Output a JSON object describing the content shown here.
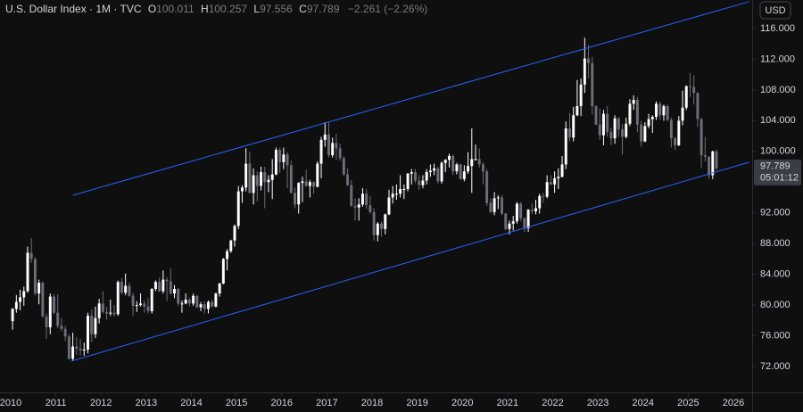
{
  "header": {
    "title": "U.S. Dollar Index · 1M · TVC",
    "o_label": "O",
    "open": "100.011",
    "h_label": "H",
    "high": "100.257",
    "l_label": "L",
    "low": "97.556",
    "c_label": "C",
    "close": "97.789",
    "change": "−2.261 (−2.26%)"
  },
  "currency": "USD",
  "chart_data": {
    "type": "candlestick",
    "xlim": [
      2009.763,
      2026.415
    ],
    "xticks": [
      2010,
      2011,
      2012,
      2013,
      2014,
      2015,
      2016,
      2017,
      2018,
      2019,
      2020,
      2021,
      2022,
      2023,
      2024,
      2025,
      2026
    ],
    "ylim": [
      68.63,
      119.71
    ],
    "yticks": [
      {
        "value": 72,
        "label": "72.000"
      },
      {
        "value": 76,
        "label": "76.000"
      },
      {
        "value": 80,
        "label": "80.000"
      },
      {
        "value": 84,
        "label": "84.000"
      },
      {
        "value": 88,
        "label": "88.000"
      },
      {
        "value": 92,
        "label": "92.000"
      },
      {
        "value": 96,
        "label": "96.000"
      },
      {
        "value": 100,
        "label": "100.000"
      },
      {
        "value": 104,
        "label": "104.000"
      },
      {
        "value": 108,
        "label": "108.000"
      },
      {
        "value": 112,
        "label": "112.000"
      },
      {
        "value": 116,
        "label": "116.000"
      }
    ],
    "up_color": "#ffffff",
    "down_color": "#6b6e78",
    "line_color": "#2962ff",
    "last_price": {
      "value": 97.789,
      "label": "97.789",
      "countdown": "05:01:12"
    },
    "trend_lines": [
      {
        "x": [
          2011.38,
          2026.35
        ],
        "y": [
          94.3,
          119.5
        ]
      },
      {
        "x": [
          2011.34,
          2026.35
        ],
        "y": [
          72.7,
          98.6
        ]
      }
    ],
    "x": [
      "2010-01",
      "2010-02",
      "2010-03",
      "2010-04",
      "2010-05",
      "2010-06",
      "2010-07",
      "2010-08",
      "2010-09",
      "2010-10",
      "2010-11",
      "2010-12",
      "2011-01",
      "2011-02",
      "2011-03",
      "2011-04",
      "2011-05",
      "2011-06",
      "2011-07",
      "2011-08",
      "2011-09",
      "2011-10",
      "2011-11",
      "2011-12",
      "2012-01",
      "2012-02",
      "2012-03",
      "2012-04",
      "2012-05",
      "2012-06",
      "2012-07",
      "2012-08",
      "2012-09",
      "2012-10",
      "2012-11",
      "2012-12",
      "2013-01",
      "2013-02",
      "2013-03",
      "2013-04",
      "2013-05",
      "2013-06",
      "2013-07",
      "2013-08",
      "2013-09",
      "2013-10",
      "2013-11",
      "2013-12",
      "2014-01",
      "2014-02",
      "2014-03",
      "2014-04",
      "2014-05",
      "2014-06",
      "2014-07",
      "2014-08",
      "2014-09",
      "2014-10",
      "2014-11",
      "2014-12",
      "2015-01",
      "2015-02",
      "2015-03",
      "2015-04",
      "2015-05",
      "2015-06",
      "2015-07",
      "2015-08",
      "2015-09",
      "2015-10",
      "2015-11",
      "2015-12",
      "2016-01",
      "2016-02",
      "2016-03",
      "2016-04",
      "2016-05",
      "2016-06",
      "2016-07",
      "2016-08",
      "2016-09",
      "2016-10",
      "2016-11",
      "2016-12",
      "2017-01",
      "2017-02",
      "2017-03",
      "2017-04",
      "2017-05",
      "2017-06",
      "2017-07",
      "2017-08",
      "2017-09",
      "2017-10",
      "2017-11",
      "2017-12",
      "2018-01",
      "2018-02",
      "2018-03",
      "2018-04",
      "2018-05",
      "2018-06",
      "2018-07",
      "2018-08",
      "2018-09",
      "2018-10",
      "2018-11",
      "2018-12",
      "2019-01",
      "2019-02",
      "2019-03",
      "2019-04",
      "2019-05",
      "2019-06",
      "2019-07",
      "2019-08",
      "2019-09",
      "2019-10",
      "2019-11",
      "2019-12",
      "2020-01",
      "2020-02",
      "2020-03",
      "2020-04",
      "2020-05",
      "2020-06",
      "2020-07",
      "2020-08",
      "2020-09",
      "2020-10",
      "2020-11",
      "2020-12",
      "2021-01",
      "2021-02",
      "2021-03",
      "2021-04",
      "2021-05",
      "2021-06",
      "2021-07",
      "2021-08",
      "2021-09",
      "2021-10",
      "2021-11",
      "2021-12",
      "2022-01",
      "2022-02",
      "2022-03",
      "2022-04",
      "2022-05",
      "2022-06",
      "2022-07",
      "2022-08",
      "2022-09",
      "2022-10",
      "2022-11",
      "2022-12",
      "2023-01",
      "2023-02",
      "2023-03",
      "2023-04",
      "2023-05",
      "2023-06",
      "2023-07",
      "2023-08",
      "2023-09",
      "2023-10",
      "2023-11",
      "2023-12",
      "2024-01",
      "2024-02",
      "2024-03",
      "2024-04",
      "2024-05",
      "2024-06",
      "2024-07",
      "2024-08",
      "2024-09",
      "2024-10",
      "2024-11",
      "2024-12",
      "2025-01",
      "2025-02",
      "2025-03",
      "2025-04",
      "2025-05",
      "2025-06",
      "2025-07",
      "2025-08"
    ],
    "candles": [
      [
        77.9,
        79.6,
        76.8,
        79.5
      ],
      [
        79.5,
        81.3,
        79.0,
        80.4
      ],
      [
        80.4,
        82.0,
        79.3,
        81.0
      ],
      [
        81.0,
        82.4,
        79.9,
        81.8
      ],
      [
        81.8,
        87.6,
        81.6,
        86.8
      ],
      [
        86.8,
        88.7,
        85.5,
        86.0
      ],
      [
        86.0,
        86.2,
        81.3,
        81.5
      ],
      [
        81.5,
        83.3,
        80.1,
        82.9
      ],
      [
        82.9,
        83.1,
        78.4,
        78.5
      ],
      [
        78.5,
        78.9,
        75.6,
        77.1
      ],
      [
        77.1,
        81.5,
        76.2,
        81.1
      ],
      [
        81.1,
        81.4,
        78.8,
        79.0
      ],
      [
        79.0,
        81.4,
        77.0,
        77.3
      ],
      [
        77.3,
        78.3,
        76.6,
        76.9
      ],
      [
        76.9,
        77.3,
        75.3,
        75.9
      ],
      [
        75.9,
        76.2,
        72.9,
        73.0
      ],
      [
        73.0,
        76.4,
        72.7,
        74.6
      ],
      [
        74.6,
        75.8,
        73.5,
        74.3
      ],
      [
        74.3,
        75.6,
        73.4,
        74.1
      ],
      [
        74.1,
        75.1,
        73.4,
        74.2
      ],
      [
        74.2,
        79.0,
        73.7,
        78.6
      ],
      [
        78.6,
        79.4,
        75.2,
        76.2
      ],
      [
        76.2,
        79.8,
        75.7,
        78.3
      ],
      [
        78.3,
        80.8,
        77.6,
        80.2
      ],
      [
        80.2,
        81.8,
        78.9,
        79.1
      ],
      [
        79.1,
        79.8,
        78.1,
        78.9
      ],
      [
        78.9,
        80.7,
        78.6,
        79.0
      ],
      [
        79.0,
        80.0,
        78.5,
        78.8
      ],
      [
        78.8,
        83.2,
        78.6,
        83.0
      ],
      [
        83.0,
        83.5,
        81.4,
        81.6
      ],
      [
        81.6,
        84.1,
        81.3,
        82.5
      ],
      [
        82.5,
        82.9,
        81.1,
        81.2
      ],
      [
        81.2,
        81.6,
        78.6,
        79.9
      ],
      [
        79.9,
        80.5,
        79.1,
        80.0
      ],
      [
        80.0,
        81.5,
        79.8,
        80.2
      ],
      [
        80.2,
        80.6,
        79.0,
        79.8
      ],
      [
        79.8,
        80.9,
        78.9,
        79.2
      ],
      [
        79.2,
        82.2,
        78.9,
        82.1
      ],
      [
        82.1,
        83.2,
        81.8,
        83.0
      ],
      [
        83.0,
        83.6,
        81.7,
        81.8
      ],
      [
        81.8,
        84.5,
        81.5,
        83.3
      ],
      [
        83.3,
        83.6,
        80.5,
        83.1
      ],
      [
        83.1,
        84.8,
        81.4,
        81.5
      ],
      [
        81.5,
        82.6,
        80.9,
        82.1
      ],
      [
        82.1,
        82.2,
        79.9,
        80.2
      ],
      [
        80.2,
        80.6,
        79.0,
        80.2
      ],
      [
        80.2,
        81.5,
        80.1,
        80.7
      ],
      [
        80.7,
        81.0,
        79.8,
        80.2
      ],
      [
        80.2,
        81.5,
        79.9,
        81.2
      ],
      [
        81.2,
        81.3,
        79.6,
        79.7
      ],
      [
        79.7,
        80.4,
        79.2,
        80.1
      ],
      [
        80.1,
        80.5,
        78.9,
        79.5
      ],
      [
        79.5,
        80.6,
        78.9,
        80.4
      ],
      [
        80.4,
        80.7,
        79.7,
        79.8
      ],
      [
        79.8,
        81.6,
        79.7,
        81.5
      ],
      [
        81.5,
        82.9,
        81.1,
        82.8
      ],
      [
        82.8,
        86.1,
        82.7,
        86.0
      ],
      [
        86.0,
        87.3,
        84.5,
        87.0
      ],
      [
        87.0,
        88.5,
        86.8,
        88.4
      ],
      [
        88.4,
        90.5,
        87.6,
        90.3
      ],
      [
        90.3,
        95.5,
        89.9,
        94.8
      ],
      [
        94.8,
        95.6,
        93.3,
        95.3
      ],
      [
        95.3,
        100.4,
        94.8,
        98.4
      ],
      [
        98.4,
        100.0,
        94.5,
        94.6
      ],
      [
        94.6,
        97.8,
        93.1,
        96.9
      ],
      [
        96.9,
        97.4,
        93.5,
        95.5
      ],
      [
        95.5,
        98.0,
        94.9,
        97.3
      ],
      [
        97.3,
        98.0,
        92.6,
        96.0
      ],
      [
        96.0,
        96.9,
        94.7,
        96.3
      ],
      [
        96.3,
        99.0,
        93.8,
        97.0
      ],
      [
        97.0,
        100.5,
        96.9,
        100.2
      ],
      [
        100.2,
        100.5,
        97.2,
        98.6
      ],
      [
        98.6,
        100.5,
        97.7,
        99.6
      ],
      [
        99.6,
        99.9,
        95.2,
        98.2
      ],
      [
        98.2,
        98.8,
        94.5,
        94.6
      ],
      [
        94.6,
        95.3,
        92.6,
        93.1
      ],
      [
        93.1,
        96.0,
        91.9,
        95.9
      ],
      [
        95.9,
        96.7,
        93.4,
        96.1
      ],
      [
        96.1,
        97.6,
        95.4,
        95.5
      ],
      [
        95.5,
        96.3,
        94.0,
        96.0
      ],
      [
        96.0,
        96.1,
        94.5,
        95.4
      ],
      [
        95.4,
        98.7,
        95.3,
        98.4
      ],
      [
        98.4,
        101.9,
        96.5,
        101.5
      ],
      [
        101.5,
        103.8,
        100.6,
        102.2
      ],
      [
        102.2,
        103.8,
        99.2,
        99.5
      ],
      [
        99.5,
        101.8,
        99.2,
        101.1
      ],
      [
        101.1,
        102.3,
        98.9,
        100.4
      ],
      [
        100.4,
        101.0,
        98.8,
        99.1
      ],
      [
        99.1,
        99.4,
        96.8,
        97.0
      ],
      [
        97.0,
        97.8,
        95.5,
        95.6
      ],
      [
        95.6,
        96.3,
        92.8,
        92.9
      ],
      [
        92.9,
        93.9,
        91.0,
        92.7
      ],
      [
        92.7,
        93.9,
        91.0,
        93.1
      ],
      [
        93.1,
        95.2,
        92.8,
        94.5
      ],
      [
        94.5,
        95.1,
        92.5,
        93.0
      ],
      [
        93.0,
        94.2,
        91.9,
        92.1
      ],
      [
        92.1,
        92.6,
        88.4,
        89.1
      ],
      [
        89.1,
        90.8,
        88.3,
        90.6
      ],
      [
        90.6,
        90.9,
        88.9,
        89.9
      ],
      [
        89.9,
        91.9,
        89.2,
        91.8
      ],
      [
        91.8,
        95.0,
        91.7,
        94.0
      ],
      [
        94.0,
        95.5,
        93.2,
        94.5
      ],
      [
        94.5,
        95.7,
        93.7,
        94.5
      ],
      [
        94.5,
        96.9,
        94.0,
        95.1
      ],
      [
        95.1,
        95.7,
        93.8,
        95.1
      ],
      [
        95.1,
        97.2,
        94.8,
        97.1
      ],
      [
        97.1,
        97.7,
        95.7,
        97.3
      ],
      [
        97.3,
        97.7,
        95.9,
        96.2
      ],
      [
        96.2,
        96.9,
        95.0,
        95.6
      ],
      [
        95.6,
        96.9,
        95.2,
        96.2
      ],
      [
        96.2,
        97.7,
        95.7,
        97.3
      ],
      [
        97.3,
        98.3,
        96.7,
        97.5
      ],
      [
        97.5,
        98.4,
        96.9,
        97.8
      ],
      [
        97.8,
        98.0,
        95.8,
        96.1
      ],
      [
        96.1,
        98.7,
        95.8,
        98.5
      ],
      [
        98.5,
        99.0,
        97.3,
        98.9
      ],
      [
        98.9,
        99.7,
        97.9,
        99.4
      ],
      [
        99.4,
        99.6,
        96.9,
        97.4
      ],
      [
        97.4,
        98.5,
        97.0,
        98.3
      ],
      [
        98.3,
        98.4,
        96.3,
        96.4
      ],
      [
        96.4,
        98.2,
        96.1,
        97.4
      ],
      [
        97.4,
        99.9,
        97.1,
        98.1
      ],
      [
        98.1,
        103.0,
        94.6,
        99.0
      ],
      [
        99.0,
        100.9,
        98.8,
        99.0
      ],
      [
        99.0,
        100.4,
        97.9,
        98.3
      ],
      [
        98.3,
        98.6,
        95.7,
        97.4
      ],
      [
        97.4,
        97.7,
        92.9,
        93.3
      ],
      [
        93.3,
        93.9,
        92.0,
        92.1
      ],
      [
        92.1,
        94.7,
        91.7,
        93.9
      ],
      [
        93.9,
        94.3,
        92.5,
        94.0
      ],
      [
        94.0,
        94.3,
        91.7,
        91.9
      ],
      [
        91.9,
        92.0,
        89.7,
        89.9
      ],
      [
        89.9,
        91.0,
        89.2,
        90.6
      ],
      [
        90.6,
        91.6,
        89.7,
        90.9
      ],
      [
        90.9,
        93.4,
        90.6,
        93.2
      ],
      [
        93.2,
        93.4,
        90.9,
        91.3
      ],
      [
        91.3,
        91.4,
        89.5,
        90.0
      ],
      [
        90.0,
        92.5,
        89.5,
        92.4
      ],
      [
        92.4,
        93.2,
        91.8,
        92.2
      ],
      [
        92.2,
        93.7,
        91.8,
        92.6
      ],
      [
        92.6,
        94.5,
        91.9,
        94.2
      ],
      [
        94.2,
        94.6,
        93.3,
        94.1
      ],
      [
        94.1,
        96.9,
        93.9,
        96.0
      ],
      [
        96.0,
        96.9,
        95.6,
        95.7
      ],
      [
        95.7,
        97.4,
        94.6,
        96.5
      ],
      [
        96.5,
        97.8,
        95.1,
        96.7
      ],
      [
        96.7,
        99.4,
        96.6,
        98.3
      ],
      [
        98.3,
        103.9,
        97.7,
        103.0
      ],
      [
        103.0,
        105.0,
        101.3,
        101.8
      ],
      [
        101.8,
        105.8,
        101.3,
        104.7
      ],
      [
        104.7,
        109.3,
        104.6,
        105.9
      ],
      [
        105.9,
        109.5,
        104.6,
        108.7
      ],
      [
        108.7,
        114.8,
        107.6,
        112.1
      ],
      [
        112.1,
        113.9,
        109.5,
        111.5
      ],
      [
        111.5,
        112.3,
        104.8,
        105.9
      ],
      [
        105.9,
        106.0,
        103.4,
        103.5
      ],
      [
        103.5,
        105.6,
        101.5,
        102.1
      ],
      [
        102.1,
        105.4,
        100.8,
        104.9
      ],
      [
        104.9,
        105.9,
        101.9,
        102.5
      ],
      [
        102.5,
        103.1,
        100.8,
        101.7
      ],
      [
        101.7,
        104.7,
        101.0,
        104.3
      ],
      [
        104.3,
        104.5,
        101.9,
        102.9
      ],
      [
        102.9,
        103.6,
        99.6,
        101.9
      ],
      [
        101.9,
        104.4,
        101.7,
        103.6
      ],
      [
        103.6,
        106.8,
        103.3,
        106.2
      ],
      [
        106.2,
        107.3,
        105.4,
        106.7
      ],
      [
        106.7,
        107.1,
        102.5,
        103.5
      ],
      [
        103.5,
        104.0,
        100.6,
        101.3
      ],
      [
        101.3,
        103.8,
        101.2,
        103.3
      ],
      [
        103.3,
        104.9,
        103.0,
        104.2
      ],
      [
        104.2,
        104.7,
        102.4,
        104.5
      ],
      [
        104.5,
        106.5,
        104.1,
        106.2
      ],
      [
        106.2,
        106.5,
        104.1,
        104.7
      ],
      [
        104.7,
        106.1,
        104.0,
        105.9
      ],
      [
        105.9,
        106.1,
        103.9,
        104.1
      ],
      [
        104.1,
        104.4,
        100.5,
        101.7
      ],
      [
        101.7,
        101.9,
        100.2,
        100.8
      ],
      [
        100.8,
        104.6,
        100.7,
        104.0
      ],
      [
        104.0,
        107.9,
        103.4,
        105.7
      ],
      [
        105.7,
        108.6,
        105.4,
        108.5
      ],
      [
        108.5,
        110.2,
        107.1,
        108.4
      ],
      [
        108.4,
        109.9,
        106.1,
        107.6
      ],
      [
        107.6,
        107.7,
        103.2,
        104.2
      ],
      [
        104.2,
        104.4,
        97.9,
        99.5
      ],
      [
        99.5,
        101.9,
        98.7,
        99.3
      ],
      [
        99.3,
        99.4,
        96.4,
        96.9
      ],
      [
        96.9,
        100.1,
        96.4,
        100.0
      ],
      [
        100.011,
        100.257,
        97.556,
        97.789
      ]
    ]
  }
}
